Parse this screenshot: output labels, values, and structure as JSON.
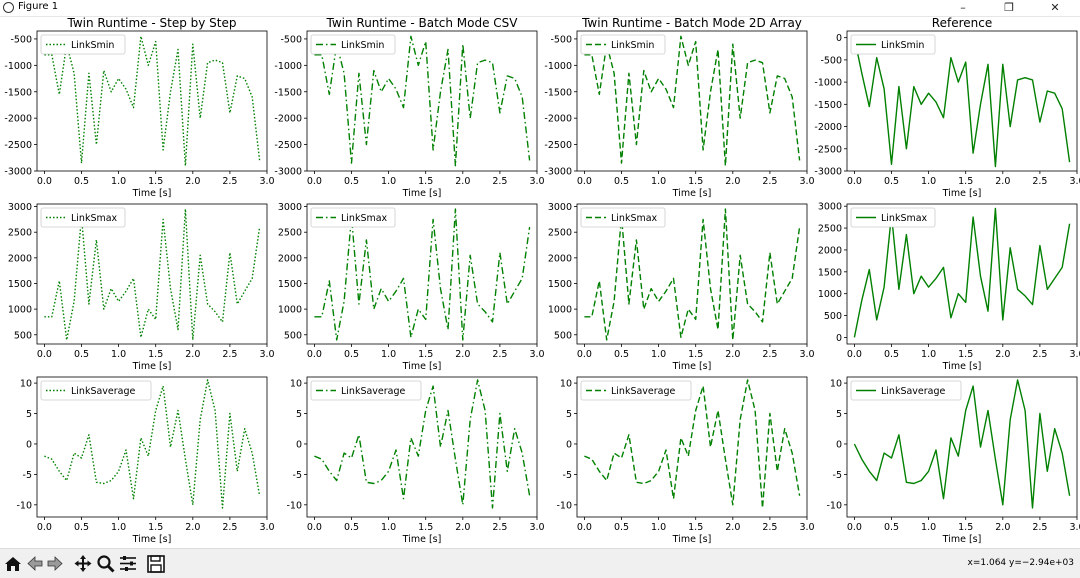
{
  "window": {
    "title": "Figure 1",
    "controls": [
      "minimize-icon",
      "maximize-icon",
      "close-icon"
    ]
  },
  "toolbar": {
    "buttons": [
      "home-icon",
      "back-icon",
      "forward-icon",
      "pan-icon",
      "zoom-icon",
      "configure-subplots-icon",
      "save-icon"
    ],
    "coords": "x=1.064 y=−2.94e+03"
  },
  "colors": {
    "line": "#008000"
  },
  "chart_data": [
    {
      "type": "line",
      "title": "Twin Runtime - Step by Step",
      "xlabel": "Time [s]",
      "ylabel": "",
      "style": "dotted",
      "legend": "upper-left",
      "series": [
        {
          "name": "LinkSmin",
          "values": [
            -800,
            -800,
            -1550,
            -600,
            -1150,
            -2850,
            -1150,
            -2500,
            -1100,
            -1500,
            -1250,
            -1450,
            -1800,
            -450,
            -1000,
            -550,
            -2600,
            -1500,
            -700,
            -2900,
            -600,
            -2000,
            -950,
            -900,
            -950,
            -1900,
            -1200,
            -1250,
            -1600,
            -2800
          ]
        }
      ],
      "x": [
        0.0,
        0.1,
        0.2,
        0.3,
        0.4,
        0.5,
        0.6,
        0.7,
        0.8,
        0.9,
        1.0,
        1.1,
        1.2,
        1.3,
        1.4,
        1.5,
        1.6,
        1.7,
        1.8,
        1.9,
        2.0,
        2.1,
        2.2,
        2.3,
        2.4,
        2.5,
        2.6,
        2.7,
        2.8,
        2.9
      ],
      "xticks": [
        "0.0",
        "0.5",
        "1.0",
        "1.5",
        "2.0",
        "2.5",
        "3.0"
      ],
      "yticks": [
        "-500",
        "-1000",
        "-1500",
        "-2000",
        "-2500",
        "-3000"
      ],
      "ylim": [
        -3000,
        -350
      ]
    },
    {
      "type": "line",
      "title": "Twin Runtime - Batch Mode CSV",
      "xlabel": "Time [s]",
      "ylabel": "",
      "style": "dashdot",
      "legend": "upper-left",
      "series": [
        {
          "name": "LinkSmin",
          "values": [
            -800,
            -800,
            -1550,
            -600,
            -1150,
            -2850,
            -1150,
            -2500,
            -1100,
            -1500,
            -1250,
            -1450,
            -1800,
            -450,
            -1000,
            -550,
            -2600,
            -1500,
            -700,
            -2900,
            -600,
            -2000,
            -950,
            -900,
            -950,
            -1900,
            -1200,
            -1250,
            -1600,
            -2800
          ]
        }
      ],
      "x": [
        0.0,
        0.1,
        0.2,
        0.3,
        0.4,
        0.5,
        0.6,
        0.7,
        0.8,
        0.9,
        1.0,
        1.1,
        1.2,
        1.3,
        1.4,
        1.5,
        1.6,
        1.7,
        1.8,
        1.9,
        2.0,
        2.1,
        2.2,
        2.3,
        2.4,
        2.5,
        2.6,
        2.7,
        2.8,
        2.9
      ],
      "xticks": [
        "0.0",
        "0.5",
        "1.0",
        "1.5",
        "2.0",
        "2.5",
        "3.0"
      ],
      "yticks": [
        "-500",
        "-1000",
        "-1500",
        "-2000",
        "-2500",
        "-3000"
      ],
      "ylim": [
        -3000,
        -350
      ]
    },
    {
      "type": "line",
      "title": "Twin Runtime - Batch Mode 2D Array",
      "xlabel": "Time [s]",
      "ylabel": "",
      "style": "dashed",
      "legend": "upper-left",
      "series": [
        {
          "name": "LinkSmin",
          "values": [
            -800,
            -800,
            -1550,
            -600,
            -1150,
            -2850,
            -1150,
            -2500,
            -1100,
            -1500,
            -1250,
            -1450,
            -1800,
            -450,
            -1000,
            -550,
            -2600,
            -1500,
            -700,
            -2900,
            -600,
            -2000,
            -950,
            -900,
            -950,
            -1900,
            -1200,
            -1250,
            -1600,
            -2800
          ]
        }
      ],
      "x": [
        0.0,
        0.1,
        0.2,
        0.3,
        0.4,
        0.5,
        0.6,
        0.7,
        0.8,
        0.9,
        1.0,
        1.1,
        1.2,
        1.3,
        1.4,
        1.5,
        1.6,
        1.7,
        1.8,
        1.9,
        2.0,
        2.1,
        2.2,
        2.3,
        2.4,
        2.5,
        2.6,
        2.7,
        2.8,
        2.9
      ],
      "xticks": [
        "0.0",
        "0.5",
        "1.0",
        "1.5",
        "2.0",
        "2.5",
        "3.0"
      ],
      "yticks": [
        "-500",
        "-1000",
        "-1500",
        "-2000",
        "-2500",
        "-3000"
      ],
      "ylim": [
        -3000,
        -350
      ]
    },
    {
      "type": "line",
      "title": "Reference",
      "xlabel": "Time [s]",
      "ylabel": "",
      "style": "solid",
      "legend": "upper-left",
      "series": [
        {
          "name": "LinkSmin",
          "values": [
            0,
            -800,
            -1550,
            -450,
            -1150,
            -2850,
            -1100,
            -2500,
            -1100,
            -1500,
            -1250,
            -1450,
            -1800,
            -450,
            -1000,
            -550,
            -2600,
            -1500,
            -600,
            -2900,
            -600,
            -2000,
            -950,
            -900,
            -950,
            -1900,
            -1200,
            -1250,
            -1600,
            -2800
          ]
        }
      ],
      "x": [
        0.0,
        0.1,
        0.2,
        0.3,
        0.4,
        0.5,
        0.6,
        0.7,
        0.8,
        0.9,
        1.0,
        1.1,
        1.2,
        1.3,
        1.4,
        1.5,
        1.6,
        1.7,
        1.8,
        1.9,
        2.0,
        2.1,
        2.2,
        2.3,
        2.4,
        2.5,
        2.6,
        2.7,
        2.8,
        2.9
      ],
      "xticks": [
        "0.0",
        "0.5",
        "1.0",
        "1.5",
        "2.0",
        "2.5",
        "3.0"
      ],
      "yticks": [
        "0",
        "-500",
        "-1000",
        "-1500",
        "-2000",
        "-2500",
        "-3000"
      ],
      "ylim": [
        -3000,
        150
      ]
    },
    {
      "type": "line",
      "title": "",
      "xlabel": "Time [s]",
      "ylabel": "",
      "style": "dotted",
      "legend": "upper-left",
      "series": [
        {
          "name": "LinkSmax",
          "values": [
            850,
            850,
            1550,
            400,
            1150,
            2800,
            1100,
            2350,
            1000,
            1400,
            1150,
            1350,
            1600,
            450,
            1000,
            800,
            2750,
            1400,
            600,
            2950,
            400,
            2050,
            1100,
            950,
            750,
            2100,
            1100,
            1350,
            1600,
            2600
          ]
        }
      ],
      "x": [
        0.0,
        0.1,
        0.2,
        0.3,
        0.4,
        0.5,
        0.6,
        0.7,
        0.8,
        0.9,
        1.0,
        1.1,
        1.2,
        1.3,
        1.4,
        1.5,
        1.6,
        1.7,
        1.8,
        1.9,
        2.0,
        2.1,
        2.2,
        2.3,
        2.4,
        2.5,
        2.6,
        2.7,
        2.8,
        2.9
      ],
      "xticks": [
        "0.0",
        "0.5",
        "1.0",
        "1.5",
        "2.0",
        "2.5",
        "3.0"
      ],
      "yticks": [
        "500",
        "1000",
        "1500",
        "2000",
        "2500",
        "3000"
      ],
      "ylim": [
        320,
        3050
      ]
    },
    {
      "type": "line",
      "title": "",
      "xlabel": "Time [s]",
      "ylabel": "",
      "style": "dashdot",
      "legend": "upper-left",
      "series": [
        {
          "name": "LinkSmax",
          "values": [
            850,
            850,
            1550,
            400,
            1150,
            2800,
            1100,
            2350,
            1000,
            1400,
            1150,
            1350,
            1600,
            450,
            1000,
            800,
            2750,
            1400,
            600,
            2950,
            400,
            2050,
            1100,
            950,
            750,
            2100,
            1100,
            1350,
            1600,
            2600
          ]
        }
      ],
      "x": [
        0.0,
        0.1,
        0.2,
        0.3,
        0.4,
        0.5,
        0.6,
        0.7,
        0.8,
        0.9,
        1.0,
        1.1,
        1.2,
        1.3,
        1.4,
        1.5,
        1.6,
        1.7,
        1.8,
        1.9,
        2.0,
        2.1,
        2.2,
        2.3,
        2.4,
        2.5,
        2.6,
        2.7,
        2.8,
        2.9
      ],
      "xticks": [
        "0.0",
        "0.5",
        "1.0",
        "1.5",
        "2.0",
        "2.5",
        "3.0"
      ],
      "yticks": [
        "500",
        "1000",
        "1500",
        "2000",
        "2500",
        "3000"
      ],
      "ylim": [
        320,
        3050
      ]
    },
    {
      "type": "line",
      "title": "",
      "xlabel": "Time [s]",
      "ylabel": "",
      "style": "dashed",
      "legend": "upper-left",
      "series": [
        {
          "name": "LinkSmax",
          "values": [
            850,
            850,
            1550,
            400,
            1150,
            2800,
            1100,
            2350,
            1000,
            1400,
            1150,
            1350,
            1600,
            450,
            1000,
            800,
            2750,
            1400,
            600,
            2950,
            400,
            2050,
            1100,
            950,
            750,
            2100,
            1100,
            1350,
            1600,
            2600
          ]
        }
      ],
      "x": [
        0.0,
        0.1,
        0.2,
        0.3,
        0.4,
        0.5,
        0.6,
        0.7,
        0.8,
        0.9,
        1.0,
        1.1,
        1.2,
        1.3,
        1.4,
        1.5,
        1.6,
        1.7,
        1.8,
        1.9,
        2.0,
        2.1,
        2.2,
        2.3,
        2.4,
        2.5,
        2.6,
        2.7,
        2.8,
        2.9
      ],
      "xticks": [
        "0.0",
        "0.5",
        "1.0",
        "1.5",
        "2.0",
        "2.5",
        "3.0"
      ],
      "yticks": [
        "500",
        "1000",
        "1500",
        "2000",
        "2500",
        "3000"
      ],
      "ylim": [
        320,
        3050
      ]
    },
    {
      "type": "line",
      "title": "",
      "xlabel": "Time [s]",
      "ylabel": "",
      "style": "solid",
      "legend": "upper-left",
      "series": [
        {
          "name": "LinkSmax",
          "values": [
            0,
            850,
            1550,
            400,
            1150,
            2800,
            1100,
            2350,
            1000,
            1400,
            1150,
            1350,
            1600,
            450,
            1000,
            800,
            2750,
            1400,
            600,
            2950,
            400,
            2050,
            1100,
            950,
            750,
            2100,
            1100,
            1350,
            1600,
            2600
          ]
        }
      ],
      "x": [
        0.0,
        0.1,
        0.2,
        0.3,
        0.4,
        0.5,
        0.6,
        0.7,
        0.8,
        0.9,
        1.0,
        1.1,
        1.2,
        1.3,
        1.4,
        1.5,
        1.6,
        1.7,
        1.8,
        1.9,
        2.0,
        2.1,
        2.2,
        2.3,
        2.4,
        2.5,
        2.6,
        2.7,
        2.8,
        2.9
      ],
      "xticks": [
        "0.0",
        "0.5",
        "1.0",
        "1.5",
        "2.0",
        "2.5",
        "3.0"
      ],
      "yticks": [
        "0",
        "500",
        "1000",
        "1500",
        "2000",
        "2500",
        "3000"
      ],
      "ylim": [
        -150,
        3050
      ]
    },
    {
      "type": "line",
      "title": "",
      "xlabel": "Time [s]",
      "ylabel": "",
      "style": "dotted",
      "legend": "upper-left",
      "series": [
        {
          "name": "LinkSaverage",
          "values": [
            -2,
            -2.5,
            -4.5,
            -6,
            -1.5,
            -2.3,
            1.5,
            -6.3,
            -6.5,
            -6,
            -4.5,
            -1,
            -9,
            1,
            -2,
            5.5,
            9.5,
            -0.5,
            5.5,
            -2.5,
            -10,
            4,
            10.5,
            5.5,
            -10.5,
            5,
            -4.5,
            2.5,
            -1.5,
            -8.5
          ]
        }
      ],
      "x": [
        0.0,
        0.1,
        0.2,
        0.3,
        0.4,
        0.5,
        0.6,
        0.7,
        0.8,
        0.9,
        1.0,
        1.1,
        1.2,
        1.3,
        1.4,
        1.5,
        1.6,
        1.7,
        1.8,
        1.9,
        2.0,
        2.1,
        2.2,
        2.3,
        2.4,
        2.5,
        2.6,
        2.7,
        2.8,
        2.9
      ],
      "xticks": [
        "0.0",
        "0.5",
        "1.0",
        "1.5",
        "2.0",
        "2.5",
        "3.0"
      ],
      "yticks": [
        "10",
        "5",
        "0",
        "-5",
        "-10"
      ],
      "ylim": [
        -12,
        11
      ]
    },
    {
      "type": "line",
      "title": "",
      "xlabel": "Time [s]",
      "ylabel": "",
      "style": "dashdot",
      "legend": "upper-left",
      "series": [
        {
          "name": "LinkSaverage",
          "values": [
            -2,
            -2.5,
            -4.5,
            -6,
            -1.5,
            -2.3,
            1.5,
            -6.3,
            -6.5,
            -6,
            -4.5,
            -1,
            -9,
            1,
            -2,
            5.5,
            9.5,
            -0.5,
            5.5,
            -2.5,
            -10,
            4,
            10.5,
            5.5,
            -10.5,
            5,
            -4.5,
            2.5,
            -1.5,
            -8.5
          ]
        }
      ],
      "x": [
        0.0,
        0.1,
        0.2,
        0.3,
        0.4,
        0.5,
        0.6,
        0.7,
        0.8,
        0.9,
        1.0,
        1.1,
        1.2,
        1.3,
        1.4,
        1.5,
        1.6,
        1.7,
        1.8,
        1.9,
        2.0,
        2.1,
        2.2,
        2.3,
        2.4,
        2.5,
        2.6,
        2.7,
        2.8,
        2.9
      ],
      "xticks": [
        "0.0",
        "0.5",
        "1.0",
        "1.5",
        "2.0",
        "2.5",
        "3.0"
      ],
      "yticks": [
        "10",
        "5",
        "0",
        "-5",
        "-10"
      ],
      "ylim": [
        -12,
        11
      ]
    },
    {
      "type": "line",
      "title": "",
      "xlabel": "Time [s]",
      "ylabel": "",
      "style": "dashed",
      "legend": "upper-left",
      "series": [
        {
          "name": "LinkSaverage",
          "values": [
            -2,
            -2.5,
            -4.5,
            -6,
            -1.5,
            -2.3,
            1.5,
            -6.3,
            -6.5,
            -6,
            -4.5,
            -1,
            -9,
            1,
            -2,
            5.5,
            9.5,
            -0.5,
            5.5,
            -2.5,
            -10,
            4,
            10.5,
            5.5,
            -10.5,
            5,
            -4.5,
            2.5,
            -1.5,
            -8.5
          ]
        }
      ],
      "x": [
        0.0,
        0.1,
        0.2,
        0.3,
        0.4,
        0.5,
        0.6,
        0.7,
        0.8,
        0.9,
        1.0,
        1.1,
        1.2,
        1.3,
        1.4,
        1.5,
        1.6,
        1.7,
        1.8,
        1.9,
        2.0,
        2.1,
        2.2,
        2.3,
        2.4,
        2.5,
        2.6,
        2.7,
        2.8,
        2.9
      ],
      "xticks": [
        "0.0",
        "0.5",
        "1.0",
        "1.5",
        "2.0",
        "2.5",
        "3.0"
      ],
      "yticks": [
        "10",
        "5",
        "0",
        "-5",
        "-10"
      ],
      "ylim": [
        -12,
        11
      ]
    },
    {
      "type": "line",
      "title": "",
      "xlabel": "Time [s]",
      "ylabel": "",
      "style": "solid",
      "legend": "upper-left",
      "series": [
        {
          "name": "LinkSaverage",
          "values": [
            0,
            -2.5,
            -4.5,
            -6,
            -1.5,
            -2.3,
            1.5,
            -6.3,
            -6.5,
            -6,
            -4.5,
            -1,
            -9,
            1,
            -2,
            5.5,
            9.5,
            -0.5,
            5.5,
            -2.5,
            -10,
            4,
            10.5,
            5.5,
            -10.5,
            5,
            -4.5,
            2.5,
            -1.5,
            -8.5
          ]
        }
      ],
      "x": [
        0.0,
        0.1,
        0.2,
        0.3,
        0.4,
        0.5,
        0.6,
        0.7,
        0.8,
        0.9,
        1.0,
        1.1,
        1.2,
        1.3,
        1.4,
        1.5,
        1.6,
        1.7,
        1.8,
        1.9,
        2.0,
        2.1,
        2.2,
        2.3,
        2.4,
        2.5,
        2.6,
        2.7,
        2.8,
        2.9
      ],
      "xticks": [
        "0.0",
        "0.5",
        "1.0",
        "1.5",
        "2.0",
        "2.5",
        "3.0"
      ],
      "yticks": [
        "10",
        "5",
        "0",
        "-5",
        "-10"
      ],
      "ylim": [
        -12,
        11
      ]
    }
  ]
}
